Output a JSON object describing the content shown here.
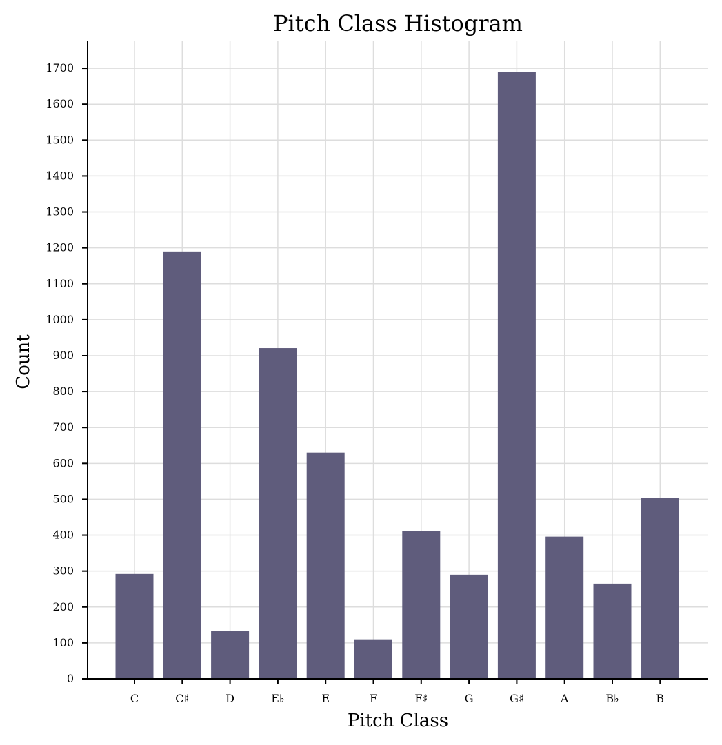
{
  "chart_data": {
    "type": "bar",
    "title": "Pitch Class Histogram",
    "xlabel": "Pitch Class",
    "ylabel": "Count",
    "categories": [
      "C",
      "C♯",
      "D",
      "E♭",
      "E",
      "F",
      "F♯",
      "G",
      "G♯",
      "A",
      "B♭",
      "B"
    ],
    "values": [
      292,
      1190,
      133,
      921,
      630,
      110,
      412,
      290,
      1689,
      396,
      265,
      504
    ],
    "ylim": [
      0,
      1775
    ],
    "yticks": [
      0,
      100,
      200,
      300,
      400,
      500,
      600,
      700,
      800,
      900,
      1000,
      1100,
      1200,
      1300,
      1400,
      1500,
      1600,
      1700
    ],
    "grid": true,
    "bar_color": "#5f5c7c"
  }
}
